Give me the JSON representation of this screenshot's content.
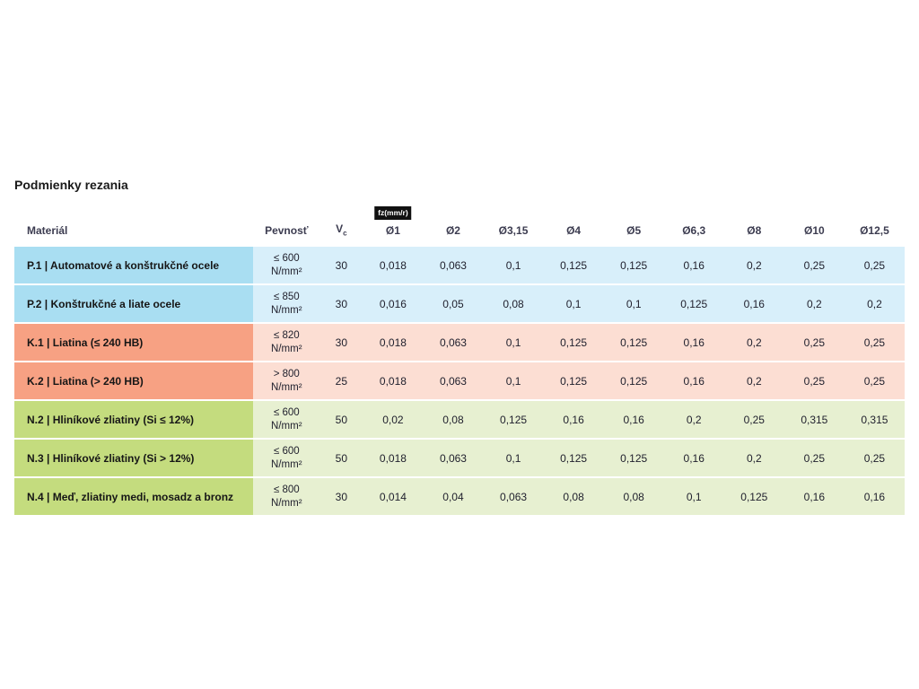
{
  "page": {
    "title": "Podmienky rezania"
  },
  "table": {
    "headers": {
      "material": "Materiál",
      "strength": "Pevnosť",
      "vc_main": "V",
      "vc_sub": "c",
      "fz_badge": "fz(mm/r)",
      "diameters": [
        "Ø1",
        "Ø2",
        "Ø3,15",
        "Ø4",
        "Ø5",
        "Ø6,3",
        "Ø8",
        "Ø10",
        "Ø12,5"
      ]
    },
    "colors": {
      "blue_dark": "#a9def2",
      "blue_light": "#d8effa",
      "red_dark": "#f7a183",
      "red_light": "#fcded3",
      "green_dark": "#c4dc7e",
      "green_light": "#e7f0d1"
    },
    "rows": [
      {
        "group": "blue",
        "material": "P.1 | Automatové a konštrukčné ocele",
        "strength": [
          "≤ 600",
          "N/mm²"
        ],
        "vc": "30",
        "values": [
          "0,018",
          "0,063",
          "0,1",
          "0,125",
          "0,125",
          "0,16",
          "0,2",
          "0,25",
          "0,25"
        ]
      },
      {
        "group": "blue",
        "material": "P.2 | Konštrukčné a liate ocele",
        "strength": [
          "≤ 850",
          "N/mm²"
        ],
        "vc": "30",
        "values": [
          "0,016",
          "0,05",
          "0,08",
          "0,1",
          "0,1",
          "0,125",
          "0,16",
          "0,2",
          "0,2"
        ]
      },
      {
        "group": "red",
        "material": "K.1 | Liatina (≤ 240 HB)",
        "strength": [
          "≤ 820",
          "N/mm²"
        ],
        "vc": "30",
        "values": [
          "0,018",
          "0,063",
          "0,1",
          "0,125",
          "0,125",
          "0,16",
          "0,2",
          "0,25",
          "0,25"
        ]
      },
      {
        "group": "red",
        "material": "K.2 | Liatina (> 240 HB)",
        "strength": [
          "> 800",
          "N/mm²"
        ],
        "vc": "25",
        "values": [
          "0,018",
          "0,063",
          "0,1",
          "0,125",
          "0,125",
          "0,16",
          "0,2",
          "0,25",
          "0,25"
        ]
      },
      {
        "group": "green",
        "material": "N.2 | Hliníkové zliatiny (Si ≤ 12%)",
        "strength": [
          "≤ 600",
          "N/mm²"
        ],
        "vc": "50",
        "values": [
          "0,02",
          "0,08",
          "0,125",
          "0,16",
          "0,16",
          "0,2",
          "0,25",
          "0,315",
          "0,315"
        ]
      },
      {
        "group": "green",
        "material": "N.3 | Hliníkové zliatiny (Si > 12%)",
        "strength": [
          "≤ 600",
          "N/mm²"
        ],
        "vc": "50",
        "values": [
          "0,018",
          "0,063",
          "0,1",
          "0,125",
          "0,125",
          "0,16",
          "0,2",
          "0,25",
          "0,25"
        ]
      },
      {
        "group": "green",
        "material": "N.4 | Meď, zliatiny medi, mosadz a bronz",
        "strength": [
          "≤ 800",
          "N/mm²"
        ],
        "vc": "30",
        "values": [
          "0,014",
          "0,04",
          "0,063",
          "0,08",
          "0,08",
          "0,1",
          "0,125",
          "0,16",
          "0,16"
        ]
      }
    ]
  }
}
